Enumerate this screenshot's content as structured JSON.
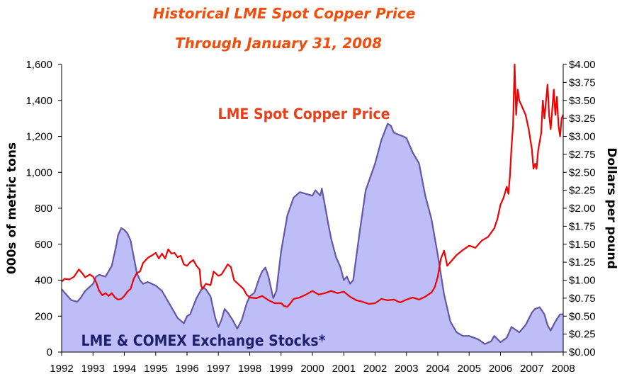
{
  "chart_data": {
    "type": "area",
    "title": "Historical LME Spot Copper Price",
    "subtitle": "Through January 31, 2008",
    "ylabel": "000s of metric tons",
    "y2label": "Dollars per pound",
    "ylim": [
      0,
      1600
    ],
    "y2lim": [
      0,
      4.0
    ],
    "xlim": [
      1992,
      2008
    ],
    "grid": false,
    "y_ticks": [
      "0",
      "200",
      "400",
      "600",
      "800",
      "1,000",
      "1,200",
      "1,400",
      "1,600"
    ],
    "y2_ticks": [
      "$0.00",
      "$0.25",
      "$0.50",
      "$0.75",
      "$1.00",
      "$1.25",
      "$1.50",
      "$1.75",
      "$2.00",
      "$2.25",
      "$2.50",
      "$2.75",
      "$3.00",
      "$3.25",
      "$3.50",
      "$3.75",
      "$4.00"
    ],
    "x_ticks": [
      "1992",
      "1993",
      "1994",
      "1995",
      "1996",
      "1997",
      "1998",
      "1999",
      "2000",
      "2001",
      "2002",
      "2003",
      "2004",
      "2005",
      "2006",
      "2007",
      "2008"
    ],
    "annotations": {
      "price": "LME Spot Copper Price",
      "stocks": "LME & COMEX Exchange Stocks*"
    },
    "colors": {
      "title": "#f04e0c",
      "price_line": "#f00000",
      "stocks_fill": "#bdbdf7",
      "stocks_line": "#6656a6",
      "stocks_label": "#1f1f6e",
      "price_label": "#e8401c"
    },
    "series": [
      {
        "name": "LME & COMEX Exchange Stocks*",
        "axis": "left",
        "style": "area",
        "x": [
          1992.0,
          1992.1,
          1992.3,
          1992.5,
          1992.6,
          1992.75,
          1993.0,
          1993.1,
          1993.2,
          1993.4,
          1993.6,
          1993.75,
          1993.8,
          1993.9,
          1994.0,
          1994.1,
          1994.2,
          1994.3,
          1994.4,
          1994.5,
          1994.6,
          1994.75,
          1995.0,
          1995.2,
          1995.5,
          1995.7,
          1995.9,
          1996.0,
          1996.1,
          1996.3,
          1996.5,
          1996.6,
          1996.75,
          1996.9,
          1997.0,
          1997.1,
          1997.2,
          1997.3,
          1997.45,
          1997.6,
          1997.75,
          1997.9,
          1998.0,
          1998.15,
          1998.3,
          1998.4,
          1998.5,
          1998.6,
          1998.75,
          1998.85,
          1999.0,
          1999.2,
          1999.4,
          1999.6,
          1999.8,
          2000.0,
          2000.1,
          2000.2,
          2000.25,
          2000.3,
          2000.5,
          2000.6,
          2000.75,
          2000.9,
          2001.0,
          2001.1,
          2001.2,
          2001.3,
          2001.5,
          2001.7,
          2001.9,
          2002.0,
          2002.2,
          2002.4,
          2002.5,
          2002.6,
          2002.75,
          2002.9,
          2003.0,
          2003.1,
          2003.2,
          2003.4,
          2003.6,
          2003.8,
          2004.0,
          2004.2,
          2004.4,
          2004.6,
          2004.8,
          2005.0,
          2005.3,
          2005.5,
          2005.7,
          2005.8,
          2006.0,
          2006.2,
          2006.35,
          2006.6,
          2006.8,
          2007.0,
          2007.1,
          2007.25,
          2007.4,
          2007.5,
          2007.6,
          2007.75,
          2007.9,
          2008.0
        ],
        "values": [
          350,
          330,
          290,
          280,
          300,
          340,
          380,
          420,
          430,
          420,
          480,
          600,
          650,
          690,
          680,
          660,
          620,
          530,
          440,
          400,
          380,
          390,
          370,
          340,
          250,
          190,
          160,
          200,
          210,
          300,
          360,
          350,
          310,
          190,
          140,
          180,
          240,
          220,
          180,
          130,
          180,
          270,
          310,
          330,
          410,
          450,
          470,
          420,
          300,
          340,
          560,
          760,
          860,
          890,
          880,
          870,
          900,
          880,
          870,
          910,
          720,
          630,
          530,
          470,
          400,
          420,
          380,
          400,
          660,
          900,
          1000,
          1050,
          1180,
          1270,
          1260,
          1220,
          1210,
          1200,
          1190,
          1150,
          1110,
          1050,
          870,
          740,
          540,
          320,
          170,
          110,
          90,
          90,
          70,
          45,
          60,
          90,
          55,
          80,
          140,
          110,
          150,
          220,
          240,
          250,
          210,
          150,
          120,
          170,
          210,
          210
        ]
      },
      {
        "name": "LME Spot Copper Price",
        "axis": "right",
        "style": "line",
        "x": [
          1992.0,
          1992.1,
          1992.25,
          1992.4,
          1992.55,
          1992.65,
          1992.75,
          1992.9,
          1993.0,
          1993.1,
          1993.2,
          1993.3,
          1993.4,
          1993.5,
          1993.6,
          1993.7,
          1993.8,
          1993.9,
          1994.0,
          1994.1,
          1994.2,
          1994.3,
          1994.4,
          1994.5,
          1994.6,
          1994.75,
          1994.9,
          1995.0,
          1995.1,
          1995.2,
          1995.3,
          1995.4,
          1995.5,
          1995.6,
          1995.7,
          1995.8,
          1995.9,
          1996.0,
          1996.1,
          1996.2,
          1996.3,
          1996.4,
          1996.45,
          1996.5,
          1996.6,
          1996.75,
          1996.85,
          1997.0,
          1997.1,
          1997.2,
          1997.3,
          1997.4,
          1997.5,
          1997.6,
          1997.7,
          1997.8,
          1997.9,
          1998.0,
          1998.2,
          1998.4,
          1998.6,
          1998.8,
          1999.0,
          1999.1,
          1999.2,
          1999.3,
          1999.4,
          1999.6,
          1999.8,
          2000.0,
          2000.2,
          2000.4,
          2000.6,
          2000.8,
          2001.0,
          2001.2,
          2001.4,
          2001.6,
          2001.8,
          2002.0,
          2002.2,
          2002.4,
          2002.6,
          2002.8,
          2003.0,
          2003.2,
          2003.4,
          2003.6,
          2003.8,
          2003.9,
          2004.0,
          2004.1,
          2004.2,
          2004.3,
          2004.4,
          2004.6,
          2004.8,
          2005.0,
          2005.2,
          2005.4,
          2005.6,
          2005.8,
          2005.9,
          2006.0,
          2006.1,
          2006.2,
          2006.25,
          2006.3,
          2006.35,
          2006.4,
          2006.45,
          2006.5,
          2006.55,
          2006.6,
          2006.7,
          2006.8,
          2006.9,
          2007.0,
          2007.05,
          2007.1,
          2007.15,
          2007.2,
          2007.3,
          2007.35,
          2007.4,
          2007.5,
          2007.55,
          2007.6,
          2007.7,
          2007.75,
          2007.8,
          2007.85,
          2007.9,
          2007.95,
          2008.0
        ],
        "values": [
          0.98,
          1.02,
          1.01,
          1.05,
          1.15,
          1.1,
          1.04,
          1.08,
          1.05,
          0.97,
          0.85,
          0.79,
          0.82,
          0.78,
          0.82,
          0.76,
          0.73,
          0.74,
          0.78,
          0.84,
          0.88,
          1.02,
          1.1,
          1.12,
          1.24,
          1.31,
          1.35,
          1.38,
          1.3,
          1.37,
          1.3,
          1.43,
          1.37,
          1.38,
          1.32,
          1.34,
          1.22,
          1.2,
          1.25,
          1.28,
          1.2,
          1.15,
          0.92,
          0.88,
          0.95,
          0.93,
          1.12,
          1.06,
          1.08,
          1.15,
          1.22,
          1.18,
          1.0,
          0.96,
          0.92,
          0.88,
          0.8,
          0.76,
          0.75,
          0.78,
          0.72,
          0.68,
          0.68,
          0.64,
          0.63,
          0.68,
          0.74,
          0.76,
          0.8,
          0.85,
          0.8,
          0.82,
          0.85,
          0.82,
          0.84,
          0.77,
          0.72,
          0.7,
          0.67,
          0.68,
          0.74,
          0.72,
          0.73,
          0.69,
          0.73,
          0.76,
          0.73,
          0.77,
          0.83,
          0.9,
          1.05,
          1.3,
          1.41,
          1.2,
          1.25,
          1.35,
          1.42,
          1.48,
          1.45,
          1.55,
          1.6,
          1.72,
          1.85,
          2.05,
          2.15,
          2.3,
          2.2,
          2.45,
          2.85,
          3.15,
          4.0,
          3.3,
          3.65,
          3.5,
          3.4,
          3.3,
          3.1,
          2.82,
          2.55,
          2.62,
          2.55,
          2.8,
          3.05,
          3.5,
          3.25,
          3.72,
          3.3,
          3.1,
          3.65,
          3.3,
          3.55,
          3.15,
          3.0,
          3.25,
          3.3
        ]
      }
    ]
  }
}
